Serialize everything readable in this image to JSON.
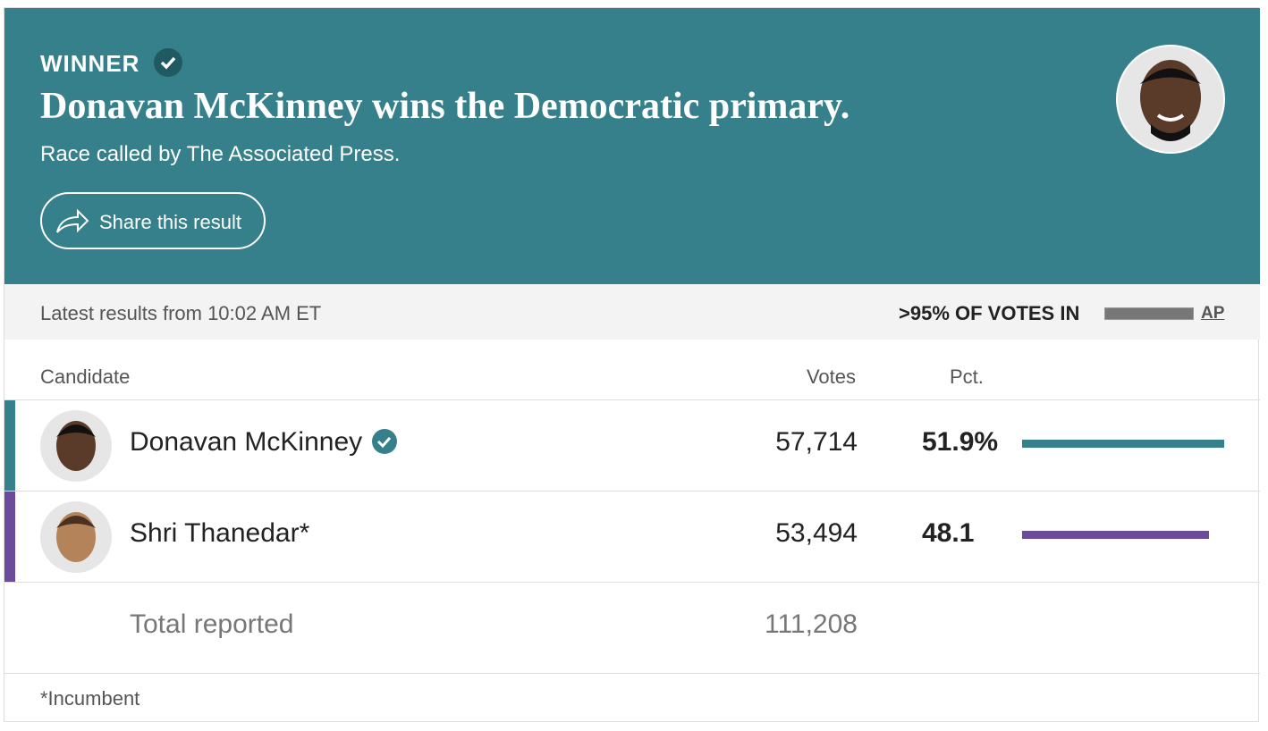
{
  "header": {
    "badge": "WINNER",
    "title": "Donavan McKinney wins the Democratic primary.",
    "subtitle": "Race called by The Associated Press.",
    "share": "Share this result"
  },
  "status": {
    "latest": "Latest results from 10:02 AM ET",
    "votes_in": ">95% OF VOTES IN",
    "source": "AP"
  },
  "table": {
    "columns": [
      "Candidate",
      "Votes",
      "Pct."
    ],
    "rows": [
      {
        "name": "Donavan McKinney",
        "votes": "57,714",
        "pct": 51.9,
        "pct_label": "51.9%",
        "color": "#35808a",
        "winner": true
      },
      {
        "name": "Shri Thanedar*",
        "votes": "53,494",
        "pct": 48.1,
        "pct_label": "48.1",
        "color": "#6b4c9a",
        "winner": false
      }
    ],
    "total": {
      "label": "Total reported",
      "votes": "111,208"
    }
  },
  "footnote": "*Incumbent"
}
